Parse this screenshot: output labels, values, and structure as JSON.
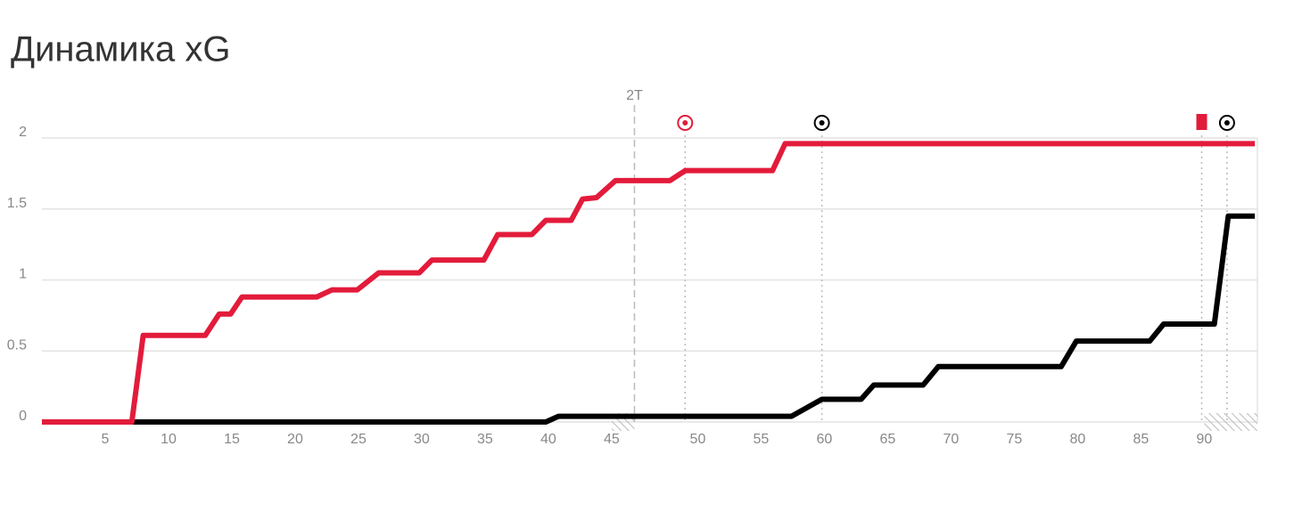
{
  "chart_data": {
    "type": "line",
    "title": "Динамика xG",
    "xlim": [
      0,
      96
    ],
    "ylim": [
      0,
      2
    ],
    "yticks": [
      0,
      {
        "value": 0.5,
        "label": "0.5"
      },
      1,
      {
        "value": 1.5,
        "label": "1.5"
      },
      2
    ],
    "xticks": [
      5,
      10,
      15,
      20,
      25,
      30,
      35,
      40,
      45,
      {
        "value": 51.8,
        "label": "50"
      },
      {
        "value": 56.8,
        "label": "55"
      },
      {
        "value": 61.8,
        "label": "60"
      },
      {
        "value": 66.8,
        "label": "65"
      },
      {
        "value": 71.8,
        "label": "70"
      },
      {
        "value": 76.8,
        "label": "75"
      },
      {
        "value": 81.8,
        "label": "80"
      },
      {
        "value": 86.8,
        "label": "85"
      },
      {
        "value": 91.8,
        "label": "90"
      }
    ],
    "grid": true,
    "halftime": {
      "x": 46.8,
      "label": "2T"
    },
    "added_time": [
      [
        45,
        46.8
      ],
      [
        91.8,
        96
      ]
    ],
    "series": [
      {
        "color": "#e31b3b",
        "x": [
          0,
          7.1,
          8,
          12.9,
          14,
          14.9,
          15.8,
          21.7,
          22.9,
          24.9,
          26.6,
          29.8,
          30.8,
          34.9,
          36,
          38.7,
          39.8,
          41.8,
          42.7,
          43.8,
          45.3,
          49.6,
          50.8,
          57.7,
          58.7,
          95.8
        ],
        "values": [
          0,
          0,
          0.61,
          0.61,
          0.76,
          0.76,
          0.88,
          0.88,
          0.93,
          0.93,
          1.05,
          1.05,
          1.14,
          1.14,
          1.32,
          1.32,
          1.42,
          1.42,
          1.57,
          1.58,
          1.7,
          1.7,
          1.77,
          1.77,
          1.96,
          1.96
        ]
      },
      {
        "color": "#000000",
        "x": [
          0,
          39.8,
          40.8,
          59.2,
          61.6,
          64.7,
          65.7,
          69.6,
          70.8,
          80.5,
          81.7,
          87.5,
          88.6,
          92.6,
          93.7,
          95.8
        ],
        "values": [
          0,
          0,
          0.04,
          0.04,
          0.16,
          0.16,
          0.26,
          0.26,
          0.39,
          0.39,
          0.57,
          0.57,
          0.69,
          0.69,
          1.45,
          1.45
        ]
      }
    ],
    "events": [
      {
        "x": 50.8,
        "kind": "goal",
        "color": "#e31b3b"
      },
      {
        "x": 61.6,
        "kind": "goal",
        "color": "#000000"
      },
      {
        "x": 91.6,
        "kind": "red-card",
        "color": "#e31b3b"
      },
      {
        "x": 93.6,
        "kind": "goal",
        "color": "#000000"
      }
    ]
  }
}
